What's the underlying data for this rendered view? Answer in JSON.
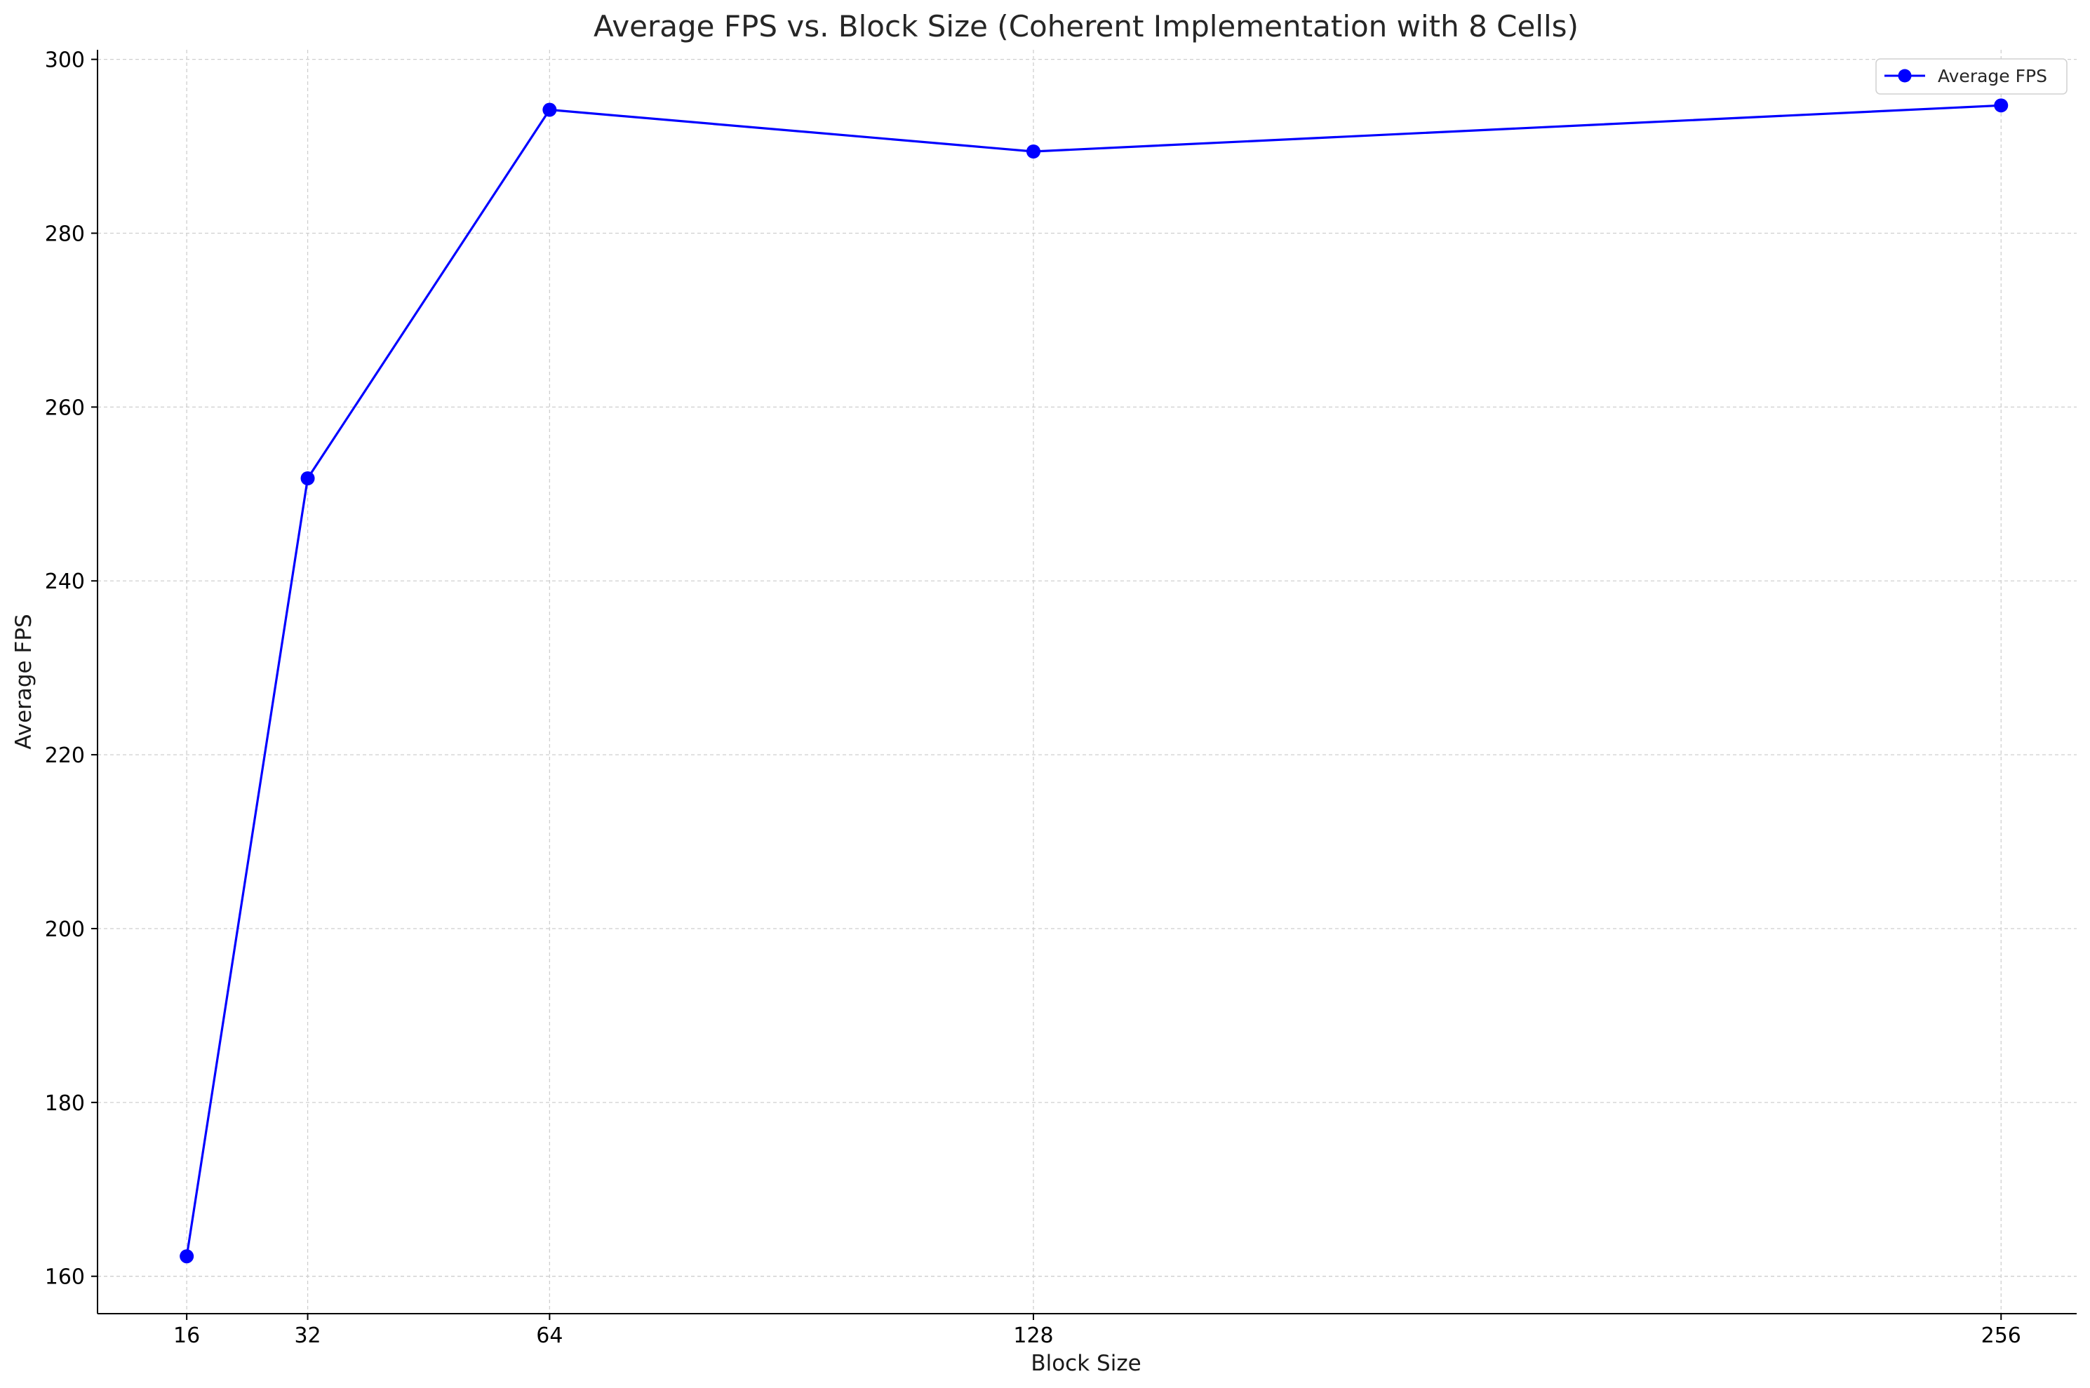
{
  "chart_data": {
    "type": "line",
    "title": "Average FPS vs. Block Size (Coherent Implementation with 8 Cells)",
    "xlabel": "Block Size",
    "ylabel": "Average FPS",
    "x": [
      16,
      32,
      64,
      128,
      256
    ],
    "x_tick_labels": [
      "16",
      "32",
      "64",
      "128",
      "256"
    ],
    "y_ticks": [
      160,
      180,
      200,
      220,
      240,
      260,
      280,
      300
    ],
    "y_tick_labels": [
      "160",
      "180",
      "200",
      "220",
      "240",
      "260",
      "280",
      "300"
    ],
    "xlim": [
      4.2,
      266
    ],
    "ylim": [
      155.7,
      301.1
    ],
    "series": [
      {
        "name": "Average FPS",
        "values": [
          162.3,
          251.8,
          294.2,
          289.4,
          294.7
        ],
        "color": "#0000ff",
        "marker": "circle"
      }
    ],
    "grid": true,
    "legend_position": "top-right"
  }
}
